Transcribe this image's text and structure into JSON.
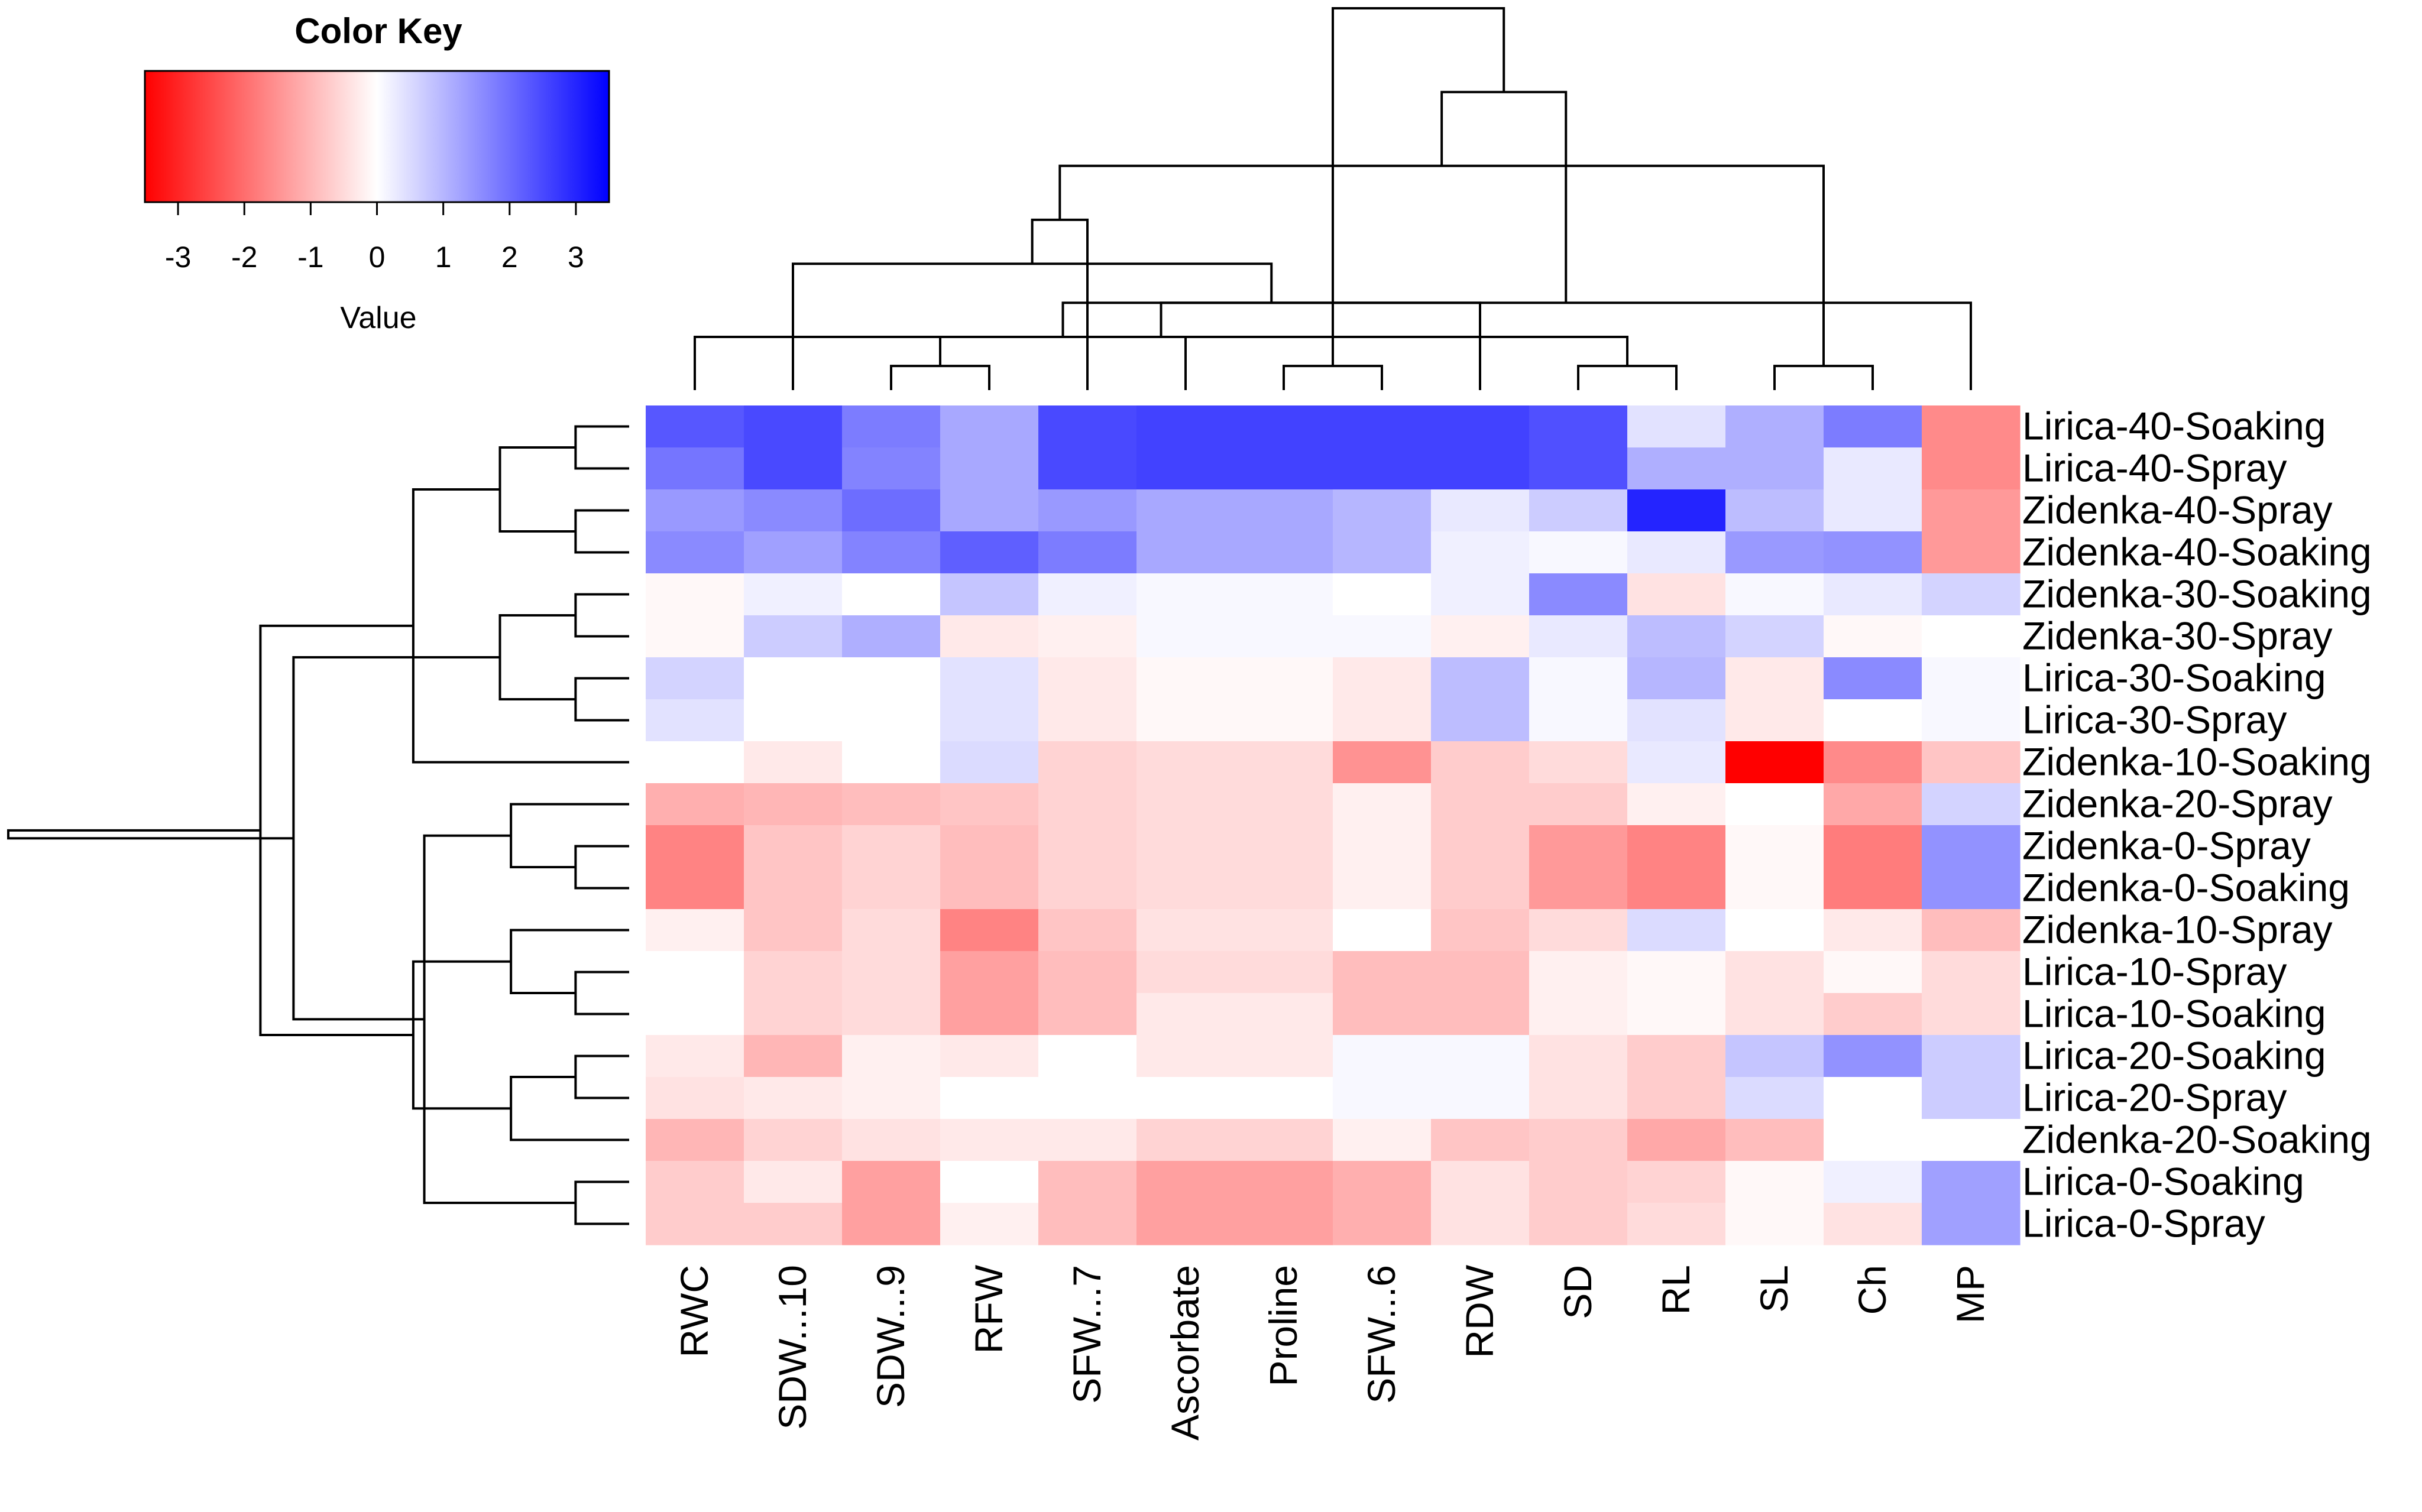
{
  "chart_data": {
    "type": "heatmap",
    "color_key": {
      "title": "Color Key",
      "xlabel": "Value",
      "range": [
        -3.5,
        3.5
      ],
      "ticks": [
        "-3",
        "-2",
        "-1",
        "0",
        "1",
        "2",
        "3"
      ],
      "tick_values": [
        -3,
        -2,
        -1,
        0,
        1,
        2,
        3
      ],
      "low_color": "#ff0000",
      "mid_color": "#ffffff",
      "high_color": "#0000ff"
    },
    "columns": [
      "RWC",
      "SDW...10",
      "SDW...9",
      "RFW",
      "SFW...7",
      "Ascorbate",
      "Proline",
      "SFW...6",
      "RDW",
      "SD",
      "RL",
      "SL",
      "Ch",
      "MP"
    ],
    "rows": [
      "Lirica-40-Soaking",
      "Lirica-40-Spray",
      "Zidenka-40-Spray",
      "Zidenka-40-Soaking",
      "Zidenka-30-Soaking",
      "Zidenka-30-Spray",
      "Lirica-30-Soaking",
      "Lirica-30-Spray",
      "Zidenka-10-Soaking",
      "Zidenka-20-Spray",
      "Zidenka-0-Spray",
      "Zidenka-0-Soaking",
      "Zidenka-10-Spray",
      "Lirica-10-Spray",
      "Lirica-10-Soaking",
      "Lirica-20-Soaking",
      "Lirica-20-Spray",
      "Zidenka-20-Soaking",
      "Lirica-0-Soaking",
      "Lirica-0-Spray"
    ],
    "values": [
      [
        2.3,
        2.5,
        1.8,
        1.2,
        2.5,
        2.6,
        2.6,
        2.6,
        2.6,
        2.4,
        0.4,
        1.1,
        1.8,
        -1.6
      ],
      [
        1.9,
        2.5,
        1.7,
        1.2,
        2.5,
        2.6,
        2.6,
        2.6,
        2.6,
        2.4,
        1.1,
        1.1,
        0.3,
        -1.6
      ],
      [
        1.4,
        1.6,
        2.0,
        1.2,
        1.4,
        1.2,
        1.2,
        1.0,
        0.3,
        0.7,
        3.0,
        0.9,
        0.3,
        -1.4
      ],
      [
        1.6,
        1.3,
        1.7,
        2.2,
        1.8,
        1.2,
        1.2,
        1.0,
        0.2,
        0.1,
        0.3,
        1.4,
        1.5,
        -1.4
      ],
      [
        -0.1,
        0.2,
        0.0,
        0.8,
        0.2,
        0.1,
        0.1,
        0.0,
        0.2,
        1.6,
        -0.4,
        0.1,
        0.3,
        0.6
      ],
      [
        -0.1,
        0.7,
        1.1,
        -0.3,
        -0.2,
        0.1,
        0.1,
        0.1,
        -0.2,
        0.3,
        0.9,
        0.6,
        -0.1,
        0.0
      ],
      [
        0.6,
        0.0,
        0.0,
        0.4,
        -0.3,
        -0.1,
        -0.1,
        -0.3,
        0.9,
        0.1,
        1.0,
        -0.3,
        1.6,
        0.1
      ],
      [
        0.4,
        0.0,
        0.0,
        0.4,
        -0.3,
        -0.1,
        -0.1,
        -0.3,
        0.9,
        0.1,
        0.4,
        -0.3,
        0.0,
        0.1
      ],
      [
        0.0,
        -0.3,
        0.0,
        0.5,
        -0.6,
        -0.5,
        -0.5,
        -1.5,
        -0.7,
        -0.5,
        0.3,
        -3.5,
        -1.6,
        -0.8
      ],
      [
        -1.1,
        -1.0,
        -0.9,
        -0.8,
        -0.6,
        -0.5,
        -0.5,
        -0.2,
        -0.7,
        -0.7,
        -0.2,
        0.0,
        -1.2,
        0.6
      ],
      [
        -1.7,
        -0.8,
        -0.6,
        -0.9,
        -0.6,
        -0.5,
        -0.5,
        -0.2,
        -0.7,
        -1.4,
        -1.7,
        -0.1,
        -1.8,
        1.5
      ],
      [
        -1.7,
        -0.8,
        -0.6,
        -0.9,
        -0.6,
        -0.5,
        -0.5,
        -0.2,
        -0.7,
        -1.4,
        -1.7,
        -0.1,
        -1.8,
        1.5
      ],
      [
        -0.2,
        -0.8,
        -0.5,
        -1.7,
        -0.8,
        -0.4,
        -0.4,
        0.0,
        -0.8,
        -0.5,
        0.5,
        0.0,
        -0.3,
        -0.9
      ],
      [
        0.0,
        -0.6,
        -0.5,
        -1.3,
        -0.9,
        -0.5,
        -0.5,
        -0.9,
        -0.9,
        -0.2,
        -0.1,
        -0.4,
        -0.1,
        -0.5
      ],
      [
        0.0,
        -0.6,
        -0.5,
        -1.3,
        -0.9,
        -0.3,
        -0.3,
        -0.9,
        -0.9,
        -0.2,
        -0.1,
        -0.4,
        -0.7,
        -0.5
      ],
      [
        -0.3,
        -1.0,
        -0.2,
        -0.3,
        0.0,
        -0.3,
        -0.3,
        0.1,
        0.1,
        -0.4,
        -0.7,
        0.8,
        1.5,
        0.7
      ],
      [
        -0.4,
        -0.3,
        -0.2,
        0.0,
        0.0,
        0.0,
        0.0,
        0.1,
        0.1,
        -0.4,
        -0.7,
        0.5,
        0.0,
        0.7
      ],
      [
        -1.0,
        -0.6,
        -0.4,
        -0.3,
        -0.3,
        -0.6,
        -0.6,
        -0.2,
        -0.8,
        -0.7,
        -1.2,
        -0.9,
        0.0,
        0.0
      ],
      [
        -0.7,
        -0.3,
        -1.3,
        0.0,
        -0.9,
        -1.3,
        -1.3,
        -1.1,
        -0.4,
        -0.7,
        -0.6,
        -0.1,
        0.2,
        1.3
      ],
      [
        -0.7,
        -0.7,
        -1.3,
        -0.2,
        -0.9,
        -1.3,
        -1.3,
        -1.1,
        -0.4,
        -0.7,
        -0.5,
        -0.1,
        -0.4,
        1.3
      ]
    ],
    "column_dendrogram": [
      [
        6,
        7
      ],
      [
        2,
        3
      ],
      [
        5,
        15
      ],
      [
        8,
        16
      ],
      [
        9,
        10
      ],
      [
        1,
        17
      ],
      [
        0,
        18
      ],
      [
        4,
        19
      ],
      [
        11,
        12
      ],
      [
        20,
        13
      ],
      [
        22,
        21
      ],
      [
        24,
        23
      ],
      [
        14,
        25
      ]
    ],
    "row_dendrogram": [
      [
        10,
        11
      ],
      [
        13,
        14
      ],
      [
        0,
        1
      ],
      [
        2,
        3
      ],
      [
        4,
        5
      ],
      [
        6,
        7
      ],
      [
        15,
        16
      ],
      [
        18,
        19
      ],
      [
        9,
        20
      ],
      [
        17,
        26
      ],
      [
        22,
        23
      ],
      [
        12,
        21
      ],
      [
        24,
        25
      ],
      [
        31,
        29
      ],
      [
        8,
        30
      ],
      [
        27,
        28
      ],
      [
        33,
        34
      ],
      [
        35,
        32
      ],
      [
        36,
        37
      ]
    ]
  }
}
